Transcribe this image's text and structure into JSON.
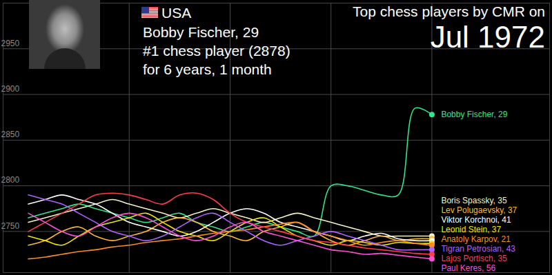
{
  "chart_data": {
    "type": "line",
    "title": "Top chess players by CMR on",
    "subtitle": "Jul 1972",
    "annotations": [
      "USA",
      "Bobby Fischer, 29",
      "#1 chess player (2878)",
      "for 6 years, 1 month"
    ],
    "x": [
      -48,
      -46,
      -44,
      -42,
      -40,
      -38,
      -36,
      -34,
      -32,
      -30,
      -28,
      -26,
      -24,
      -22,
      -20,
      -18,
      -16,
      -14,
      -12,
      -10,
      -8,
      -6,
      -4,
      -2,
      0
    ],
    "xlim": [
      -51,
      14
    ],
    "xticks": [
      -36,
      -24,
      -12,
      0
    ],
    "ylim": [
      2705,
      3000
    ],
    "yticks": [
      2750,
      2800,
      2850,
      2900,
      2950
    ],
    "grid": true,
    "tick_labels": "y",
    "legend": "right",
    "series": [
      {
        "name": "Bobby Fischer, 29",
        "color": "#2ee88a",
        "values": [
          2765,
          2770,
          2775,
          2780,
          2775,
          2770,
          2765,
          2760,
          2765,
          2770,
          2760,
          2755,
          2750,
          2755,
          2760,
          2755,
          2750,
          2745,
          2800,
          2800,
          2795,
          2790,
          2790,
          2885,
          2878
        ]
      },
      {
        "name": "Boris Spassky, 35",
        "color": "#f4f4c0",
        "values": [
          2760,
          2765,
          2770,
          2775,
          2780,
          2785,
          2780,
          2775,
          2770,
          2765,
          2770,
          2775,
          2770,
          2765,
          2760,
          2765,
          2770,
          2765,
          2760,
          2755,
          2750,
          2745,
          2745,
          2745,
          2745
        ]
      },
      {
        "name": "Lev Polugaevsky, 37",
        "color": "#ffb830",
        "values": [
          2735,
          2740,
          2750,
          2755,
          2745,
          2740,
          2745,
          2750,
          2760,
          2765,
          2760,
          2750,
          2745,
          2740,
          2750,
          2755,
          2760,
          2750,
          2740,
          2735,
          2740,
          2745,
          2740,
          2742,
          2742
        ]
      },
      {
        "name": "Viktor Korchnoi, 41",
        "color": "#ffffff",
        "values": [
          2780,
          2785,
          2790,
          2785,
          2780,
          2770,
          2760,
          2755,
          2750,
          2745,
          2750,
          2760,
          2770,
          2775,
          2770,
          2760,
          2755,
          2750,
          2745,
          2740,
          2745,
          2748,
          2742,
          2740,
          2740
        ]
      },
      {
        "name": "Leonid Stein, 37",
        "color": "#f2e600",
        "values": [
          2745,
          2740,
          2735,
          2745,
          2755,
          2760,
          2765,
          2770,
          2760,
          2750,
          2745,
          2740,
          2750,
          2760,
          2765,
          2755,
          2745,
          2740,
          2735,
          2740,
          2738,
          2735,
          2738,
          2737,
          2737
        ]
      },
      {
        "name": "Anatoly Karpov, 21",
        "color": "#ff8a1e",
        "values": [
          2720,
          2722,
          2725,
          2728,
          2730,
          2733,
          2735,
          2738,
          2740,
          2742,
          2745,
          2748,
          2750,
          2752,
          2755,
          2758,
          2760,
          2750,
          2745,
          2740,
          2735,
          2738,
          2740,
          2737,
          2735
        ]
      },
      {
        "name": "Tigran Petrosian, 43",
        "color": "#b061ff",
        "values": [
          2790,
          2785,
          2780,
          2770,
          2760,
          2750,
          2745,
          2740,
          2745,
          2755,
          2765,
          2770,
          2760,
          2750,
          2740,
          2735,
          2740,
          2745,
          2750,
          2745,
          2740,
          2735,
          2730,
          2730,
          2730
        ]
      },
      {
        "name": "Lajos Portisch, 35",
        "color": "#ff3b4e",
        "values": [
          2750,
          2760,
          2770,
          2780,
          2790,
          2792,
          2790,
          2785,
          2780,
          2790,
          2792,
          2785,
          2770,
          2760,
          2755,
          2750,
          2745,
          2740,
          2738,
          2735,
          2732,
          2730,
          2728,
          2726,
          2725
        ]
      },
      {
        "name": "Paul Keres, 56",
        "color": "#ff4fd8",
        "values": [
          2770,
          2760,
          2750,
          2745,
          2755,
          2765,
          2770,
          2765,
          2755,
          2745,
          2740,
          2745,
          2755,
          2760,
          2750,
          2745,
          2740,
          2735,
          2730,
          2728,
          2725,
          2726,
          2724,
          2722,
          2720
        ]
      }
    ]
  }
}
